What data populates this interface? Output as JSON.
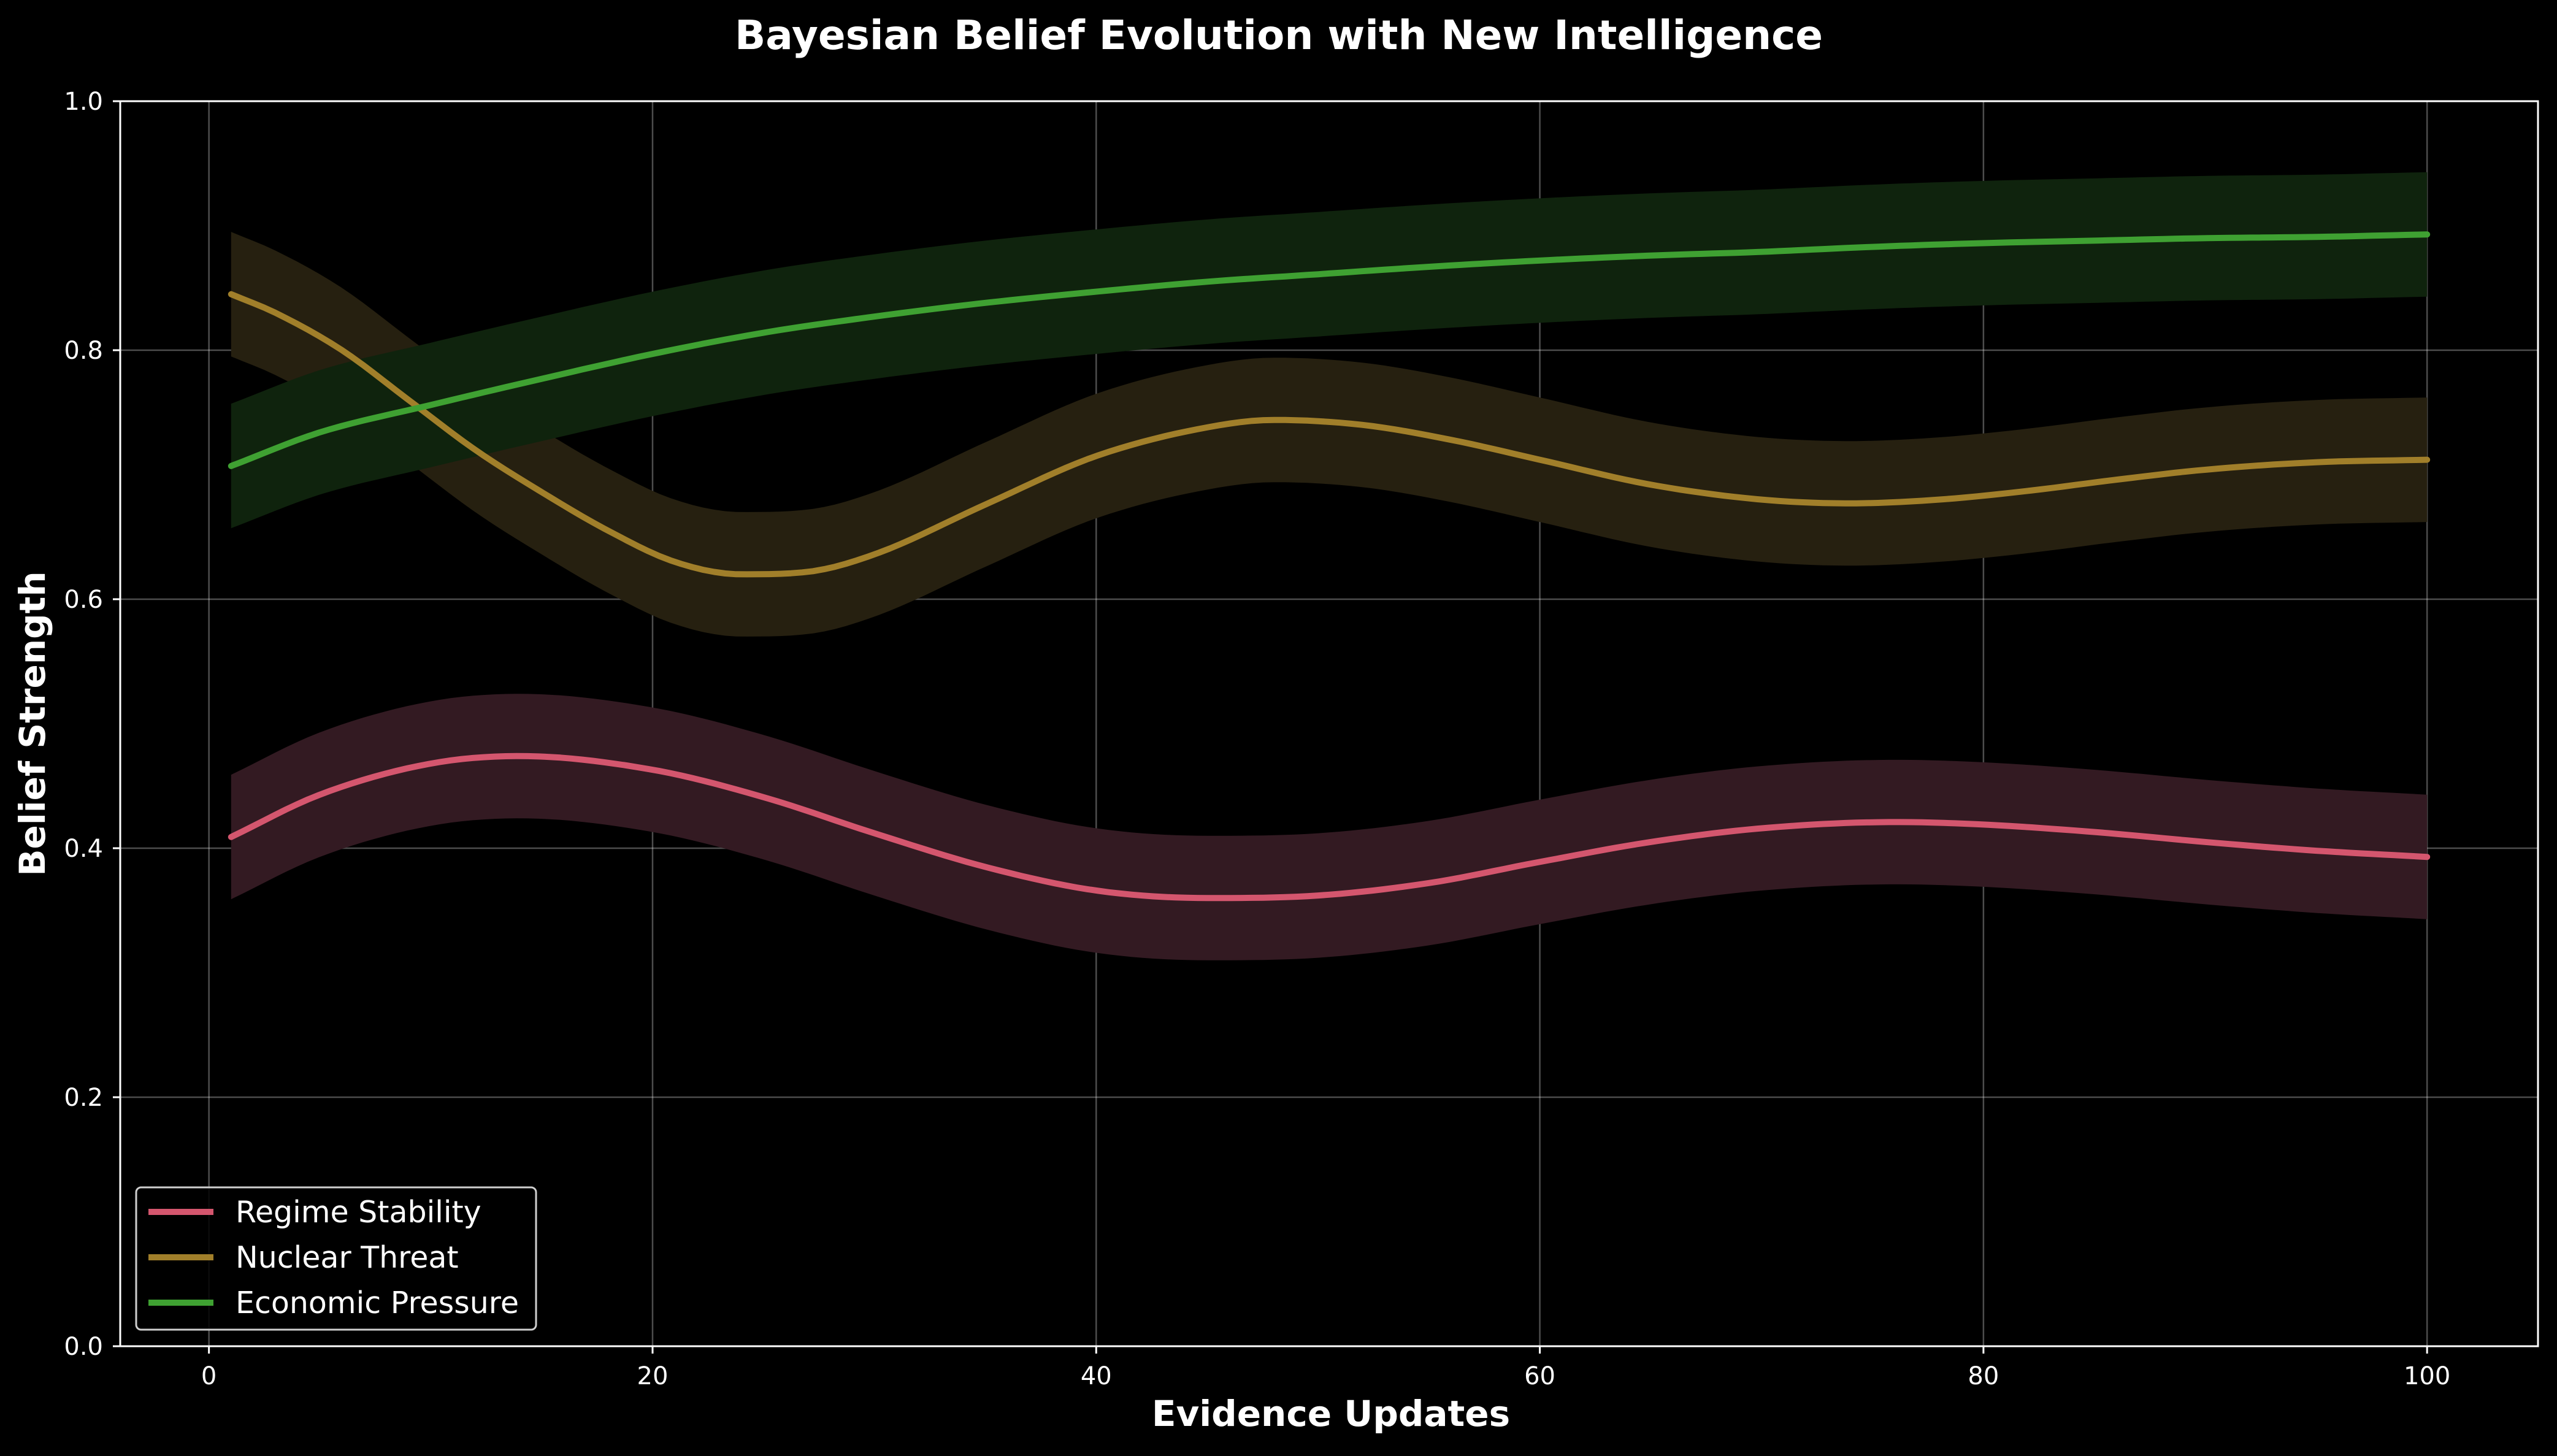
{
  "chart_data": {
    "type": "line",
    "title": "Bayesian Belief Evolution with New Intelligence",
    "xlabel": "Evidence Updates",
    "ylabel": "Belief Strength",
    "xlim": [
      -4,
      105
    ],
    "ylim": [
      0.0,
      1.0
    ],
    "x_ticks": [
      0,
      20,
      40,
      60,
      80,
      100
    ],
    "y_ticks": [
      0.0,
      0.2,
      0.4,
      0.6,
      0.8,
      1.0
    ],
    "x_tick_labels": [
      "0",
      "20",
      "40",
      "60",
      "80",
      "100"
    ],
    "y_tick_labels": [
      "0.0",
      "0.2",
      "0.4",
      "0.6",
      "0.8",
      "1.0"
    ],
    "grid": true,
    "legend_position": "lower-left",
    "band_halfwidth": 0.05,
    "background": "#000000",
    "series": [
      {
        "name": "Regime Stability",
        "color": "#d4566e",
        "band_color": "#331a22",
        "x": [
          1,
          5,
          10,
          14,
          20,
          25,
          30,
          35,
          40,
          45,
          50,
          55,
          60,
          65,
          70,
          76,
          80,
          85,
          90,
          95,
          100
        ],
        "values": [
          0.409,
          0.443,
          0.468,
          0.474,
          0.463,
          0.441,
          0.412,
          0.385,
          0.366,
          0.36,
          0.362,
          0.372,
          0.389,
          0.405,
          0.416,
          0.421,
          0.419,
          0.413,
          0.405,
          0.398,
          0.393
        ]
      },
      {
        "name": "Nuclear Threat",
        "color": "#a17f2a",
        "band_color": "#262010",
        "x": [
          1,
          3,
          6,
          9,
          12,
          15,
          18,
          21,
          24,
          27,
          30,
          35,
          40,
          45,
          48,
          52,
          56,
          60,
          65,
          70,
          74,
          78,
          82,
          86,
          90,
          95,
          100
        ],
        "values": [
          0.845,
          0.83,
          0.8,
          0.76,
          0.72,
          0.686,
          0.655,
          0.63,
          0.62,
          0.622,
          0.636,
          0.676,
          0.715,
          0.738,
          0.744,
          0.74,
          0.728,
          0.712,
          0.692,
          0.68,
          0.677,
          0.68,
          0.687,
          0.696,
          0.704,
          0.71,
          0.712
        ]
      },
      {
        "name": "Economic Pressure",
        "color": "#3fa132",
        "band_color": "#0f230d",
        "x": [
          1,
          5,
          10,
          15,
          20,
          25,
          30,
          35,
          40,
          45,
          50,
          55,
          60,
          65,
          70,
          75,
          80,
          85,
          90,
          95,
          100
        ],
        "values": [
          0.707,
          0.734,
          0.756,
          0.777,
          0.797,
          0.814,
          0.827,
          0.838,
          0.847,
          0.855,
          0.861,
          0.867,
          0.872,
          0.876,
          0.879,
          0.883,
          0.886,
          0.888,
          0.89,
          0.891,
          0.893
        ]
      }
    ]
  }
}
